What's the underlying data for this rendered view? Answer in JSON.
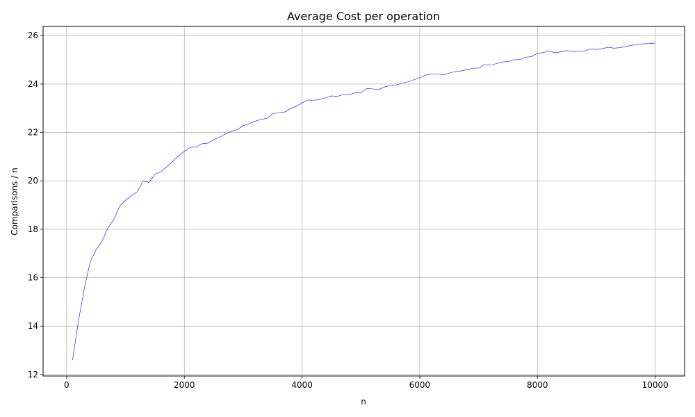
{
  "chart_data": {
    "type": "line",
    "title": "Average Cost per operation",
    "xlabel": "n",
    "ylabel": "Comparisons / n",
    "xlim": [
      -400,
      10500
    ],
    "ylim": [
      11.94,
      26.38
    ],
    "xticks": [
      0,
      2000,
      4000,
      6000,
      8000,
      10000
    ],
    "yticks": [
      12,
      14,
      16,
      18,
      20,
      22,
      24,
      26
    ],
    "grid": true,
    "line_color": "#0000ff",
    "series": [
      {
        "x": [
          100,
          200,
          300,
          400,
          500,
          600,
          700,
          800,
          900,
          1000,
          1100,
          1200,
          1300,
          1400,
          1500,
          1600,
          1700,
          1800,
          1900,
          2000,
          2100,
          2200,
          2300,
          2400,
          2500,
          2600,
          2700,
          2800,
          2900,
          3000,
          3100,
          3200,
          3300,
          3400,
          3500,
          3600,
          3700,
          3800,
          3900,
          4000,
          4100,
          4200,
          4300,
          4400,
          4500,
          4600,
          4700,
          4800,
          4900,
          5000,
          5100,
          5200,
          5300,
          5400,
          5500,
          5600,
          5700,
          5800,
          5900,
          6000,
          6100,
          6200,
          6300,
          6400,
          6500,
          6600,
          6700,
          6800,
          6900,
          7000,
          7100,
          7200,
          7300,
          7400,
          7500,
          7600,
          7700,
          7800,
          7900,
          8000,
          8100,
          8200,
          8300,
          8400,
          8500,
          8600,
          8700,
          8800,
          8900,
          9000,
          9100,
          9200,
          9300,
          9400,
          9500,
          9600,
          9700,
          9800,
          9900,
          10000
        ],
        "y": [
          12.6,
          14.2,
          15.55,
          16.65,
          17.15,
          17.5,
          18.05,
          18.4,
          18.95,
          19.2,
          19.38,
          19.55,
          20.0,
          19.93,
          20.27,
          20.38,
          20.57,
          20.8,
          21.03,
          21.22,
          21.38,
          21.4,
          21.53,
          21.56,
          21.7,
          21.8,
          21.94,
          22.05,
          22.12,
          22.28,
          22.36,
          22.46,
          22.54,
          22.58,
          22.77,
          22.82,
          22.84,
          22.98,
          23.08,
          23.22,
          23.34,
          23.33,
          23.36,
          23.43,
          23.51,
          23.49,
          23.57,
          23.56,
          23.64,
          23.64,
          23.81,
          23.8,
          23.77,
          23.88,
          23.94,
          23.96,
          24.04,
          24.09,
          24.18,
          24.26,
          24.37,
          24.41,
          24.41,
          24.38,
          24.45,
          24.51,
          24.54,
          24.59,
          24.65,
          24.66,
          24.8,
          24.78,
          24.84,
          24.91,
          24.93,
          25.0,
          25.01,
          25.11,
          25.13,
          25.27,
          25.3,
          25.37,
          25.29,
          25.33,
          25.38,
          25.34,
          25.35,
          25.36,
          25.45,
          25.43,
          25.46,
          25.52,
          25.48,
          25.5,
          25.55,
          25.6,
          25.63,
          25.66,
          25.67,
          25.69
        ]
      }
    ]
  }
}
